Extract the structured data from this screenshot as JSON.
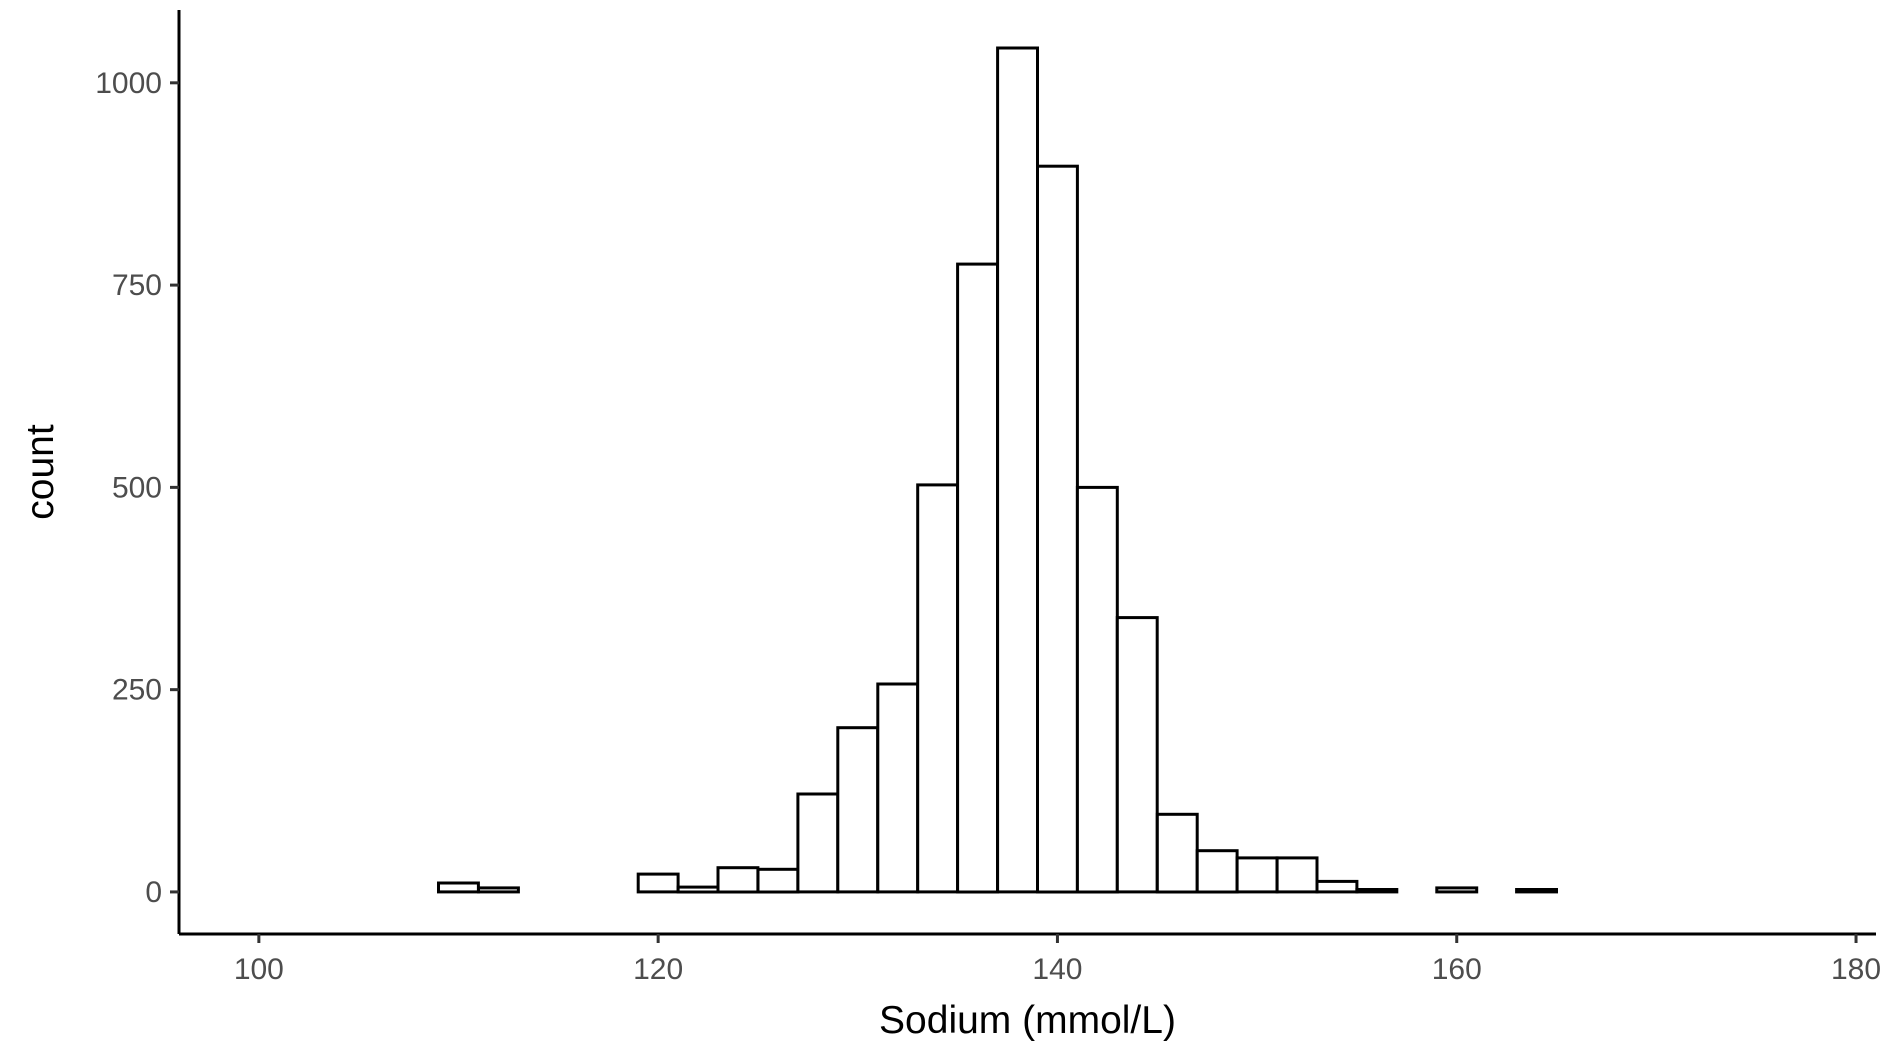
{
  "chart_data": {
    "type": "bar",
    "xlabel": "Sodium (mmol/L)",
    "ylabel": "count",
    "xlim": [
      96,
      181
    ],
    "ylim": [
      -52,
      1090
    ],
    "xticks": [
      100,
      120,
      140,
      160,
      180
    ],
    "yticks": [
      0,
      250,
      500,
      750,
      1000
    ],
    "bin_width": 2,
    "bins": [
      {
        "x0": 101,
        "x1": 103,
        "count": 0
      },
      {
        "x0": 103,
        "x1": 105,
        "count": 0
      },
      {
        "x0": 105,
        "x1": 107,
        "count": 0
      },
      {
        "x0": 107,
        "x1": 109,
        "count": 0
      },
      {
        "x0": 109,
        "x1": 111,
        "count": 11
      },
      {
        "x0": 111,
        "x1": 113,
        "count": 5
      },
      {
        "x0": 113,
        "x1": 115,
        "count": 0
      },
      {
        "x0": 115,
        "x1": 117,
        "count": 0
      },
      {
        "x0": 117,
        "x1": 119,
        "count": 0
      },
      {
        "x0": 119,
        "x1": 121,
        "count": 22
      },
      {
        "x0": 121,
        "x1": 123,
        "count": 6
      },
      {
        "x0": 123,
        "x1": 125,
        "count": 30
      },
      {
        "x0": 125,
        "x1": 127,
        "count": 28
      },
      {
        "x0": 127,
        "x1": 129,
        "count": 121
      },
      {
        "x0": 129,
        "x1": 131,
        "count": 203
      },
      {
        "x0": 131,
        "x1": 133,
        "count": 257
      },
      {
        "x0": 133,
        "x1": 135,
        "count": 503
      },
      {
        "x0": 135,
        "x1": 137,
        "count": 776
      },
      {
        "x0": 137,
        "x1": 139,
        "count": 1043
      },
      {
        "x0": 139,
        "x1": 141,
        "count": 897
      },
      {
        "x0": 141,
        "x1": 143,
        "count": 500
      },
      {
        "x0": 143,
        "x1": 145,
        "count": 339
      },
      {
        "x0": 145,
        "x1": 147,
        "count": 96
      },
      {
        "x0": 147,
        "x1": 149,
        "count": 51
      },
      {
        "x0": 149,
        "x1": 151,
        "count": 42
      },
      {
        "x0": 151,
        "x1": 153,
        "count": 42
      },
      {
        "x0": 153,
        "x1": 155,
        "count": 13
      },
      {
        "x0": 155,
        "x1": 157,
        "count": 3
      },
      {
        "x0": 157,
        "x1": 159,
        "count": 0
      },
      {
        "x0": 159,
        "x1": 161,
        "count": 5
      },
      {
        "x0": 161,
        "x1": 163,
        "count": 0
      },
      {
        "x0": 163,
        "x1": 165,
        "count": 3
      },
      {
        "x0": 165,
        "x1": 167,
        "count": 0
      },
      {
        "x0": 167,
        "x1": 169,
        "count": 0
      },
      {
        "x0": 169,
        "x1": 171,
        "count": 0
      },
      {
        "x0": 171,
        "x1": 173,
        "count": 0
      },
      {
        "x0": 173,
        "x1": 175,
        "count": 0
      },
      {
        "x0": 175,
        "x1": 177,
        "count": 0
      },
      {
        "x0": 177,
        "x1": 179,
        "count": 0
      }
    ],
    "grid": false,
    "legend": "none"
  }
}
